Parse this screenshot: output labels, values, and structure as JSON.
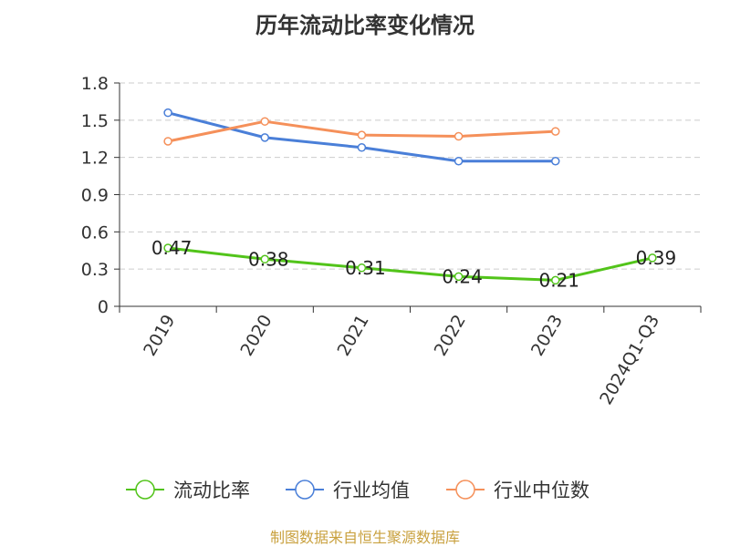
{
  "chart_data": {
    "type": "line",
    "title": "历年流动比率变化情况",
    "categories": [
      "2019",
      "2020",
      "2021",
      "2022",
      "2023",
      "2024Q1-Q3"
    ],
    "ylim": [
      0,
      1.8
    ],
    "yticks": [
      0,
      0.3,
      0.6,
      0.9,
      1.2,
      1.5,
      1.8
    ],
    "ytick_labels": [
      "0",
      "0.3",
      "0.6",
      "0.9",
      "1.2",
      "1.5",
      "1.8"
    ],
    "grid": true,
    "legend_position": "bottom",
    "series": [
      {
        "name": "流动比率",
        "color": "#52c41a",
        "values": [
          0.47,
          0.38,
          0.31,
          0.24,
          0.21,
          0.39
        ],
        "labels": [
          "0.47",
          "0.38",
          "0.31",
          "0.24",
          "0.21",
          "0.39"
        ]
      },
      {
        "name": "行业均值",
        "color": "#4a7fd8",
        "values": [
          1.56,
          1.36,
          1.28,
          1.17,
          1.17,
          null
        ]
      },
      {
        "name": "行业中位数",
        "color": "#f5905a",
        "values": [
          1.33,
          1.49,
          1.38,
          1.37,
          1.41,
          null
        ]
      }
    ]
  },
  "source_text": "制图数据来自恒生聚源数据库"
}
